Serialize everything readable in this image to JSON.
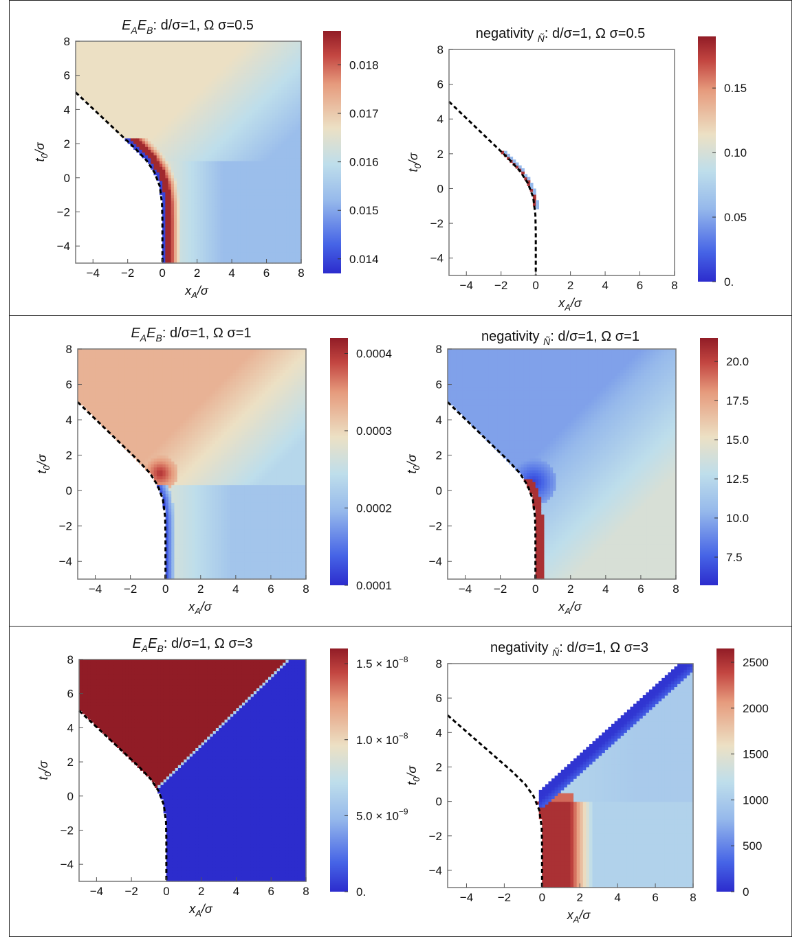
{
  "figure": {
    "panels": [
      {
        "title_parts": [
          "E",
          "A",
          "E",
          "B",
          ": d/σ=1, Ω σ=0.5"
        ],
        "xlabel_parts": [
          "x",
          "A",
          "/σ"
        ],
        "ylabel_parts": [
          "t",
          "0",
          "/σ"
        ],
        "xticks": [
          "−4",
          "−2",
          "0",
          "2",
          "4",
          "6",
          "8"
        ],
        "yticks": [
          "−4",
          "−2",
          "0",
          "2",
          "4",
          "6",
          "8"
        ],
        "colorbar_ticks": [
          "0.014",
          "0.015",
          "0.016",
          "0.017",
          "0.018"
        ]
      },
      {
        "title_parts": [
          "negativity ",
          "Ñ",
          "",
          "",
          ": d/σ=1, Ω σ=0.5"
        ],
        "xlabel_parts": [
          "x",
          "A",
          "/σ"
        ],
        "ylabel_parts": [
          "t",
          "0",
          "/σ"
        ],
        "xticks": [
          "−4",
          "−2",
          "0",
          "2",
          "4",
          "6",
          "8"
        ],
        "yticks": [
          "−4",
          "−2",
          "0",
          "2",
          "4",
          "6",
          "8"
        ],
        "colorbar_ticks": [
          "0.",
          "0.05",
          "0.10",
          "0.15"
        ]
      },
      {
        "title_parts": [
          "E",
          "A",
          "E",
          "B",
          ": d/σ=1, Ω σ=1"
        ],
        "xlabel_parts": [
          "x",
          "A",
          "/σ"
        ],
        "ylabel_parts": [
          "t",
          "0",
          "/σ"
        ],
        "xticks": [
          "−4",
          "−2",
          "0",
          "2",
          "4",
          "6",
          "8"
        ],
        "yticks": [
          "−4",
          "−2",
          "0",
          "2",
          "4",
          "6",
          "8"
        ],
        "colorbar_ticks": [
          "0.0001",
          "0.0002",
          "0.0003",
          "0.0004"
        ]
      },
      {
        "title_parts": [
          "negativity ",
          "Ñ",
          "",
          "",
          ": d/σ=1, Ω σ=1"
        ],
        "xlabel_parts": [
          "x",
          "A",
          "/σ"
        ],
        "ylabel_parts": [
          "t",
          "0",
          "/σ"
        ],
        "xticks": [
          "−4",
          "−2",
          "0",
          "2",
          "4",
          "6",
          "8"
        ],
        "yticks": [
          "−4",
          "−2",
          "0",
          "2",
          "4",
          "6",
          "8"
        ],
        "colorbar_ticks": [
          "7.5",
          "10.0",
          "12.5",
          "15.0",
          "17.5",
          "20.0"
        ]
      },
      {
        "title_parts": [
          "E",
          "A",
          "E",
          "B",
          ": d/σ=1, Ω σ=3"
        ],
        "xlabel_parts": [
          "x",
          "A",
          "/σ"
        ],
        "ylabel_parts": [
          "t",
          "0",
          "/σ"
        ],
        "xticks": [
          "−4",
          "−2",
          "0",
          "2",
          "4",
          "6",
          "8"
        ],
        "yticks": [
          "−4",
          "−2",
          "0",
          "2",
          "4",
          "6",
          "8"
        ],
        "colorbar_ticks": [
          "0.",
          "5.0 × 10^-9",
          "1.0 × 10^-8",
          "1.5 × 10^-8"
        ]
      },
      {
        "title_parts": [
          "negativity ",
          "Ñ",
          "",
          "",
          ": d/σ=1, Ω σ=3"
        ],
        "xlabel_parts": [
          "x",
          "A",
          "/σ"
        ],
        "ylabel_parts": [
          "t",
          "0",
          "/σ"
        ],
        "xticks": [
          "−4",
          "−2",
          "0",
          "2",
          "4",
          "6",
          "8"
        ],
        "yticks": [
          "−4",
          "−2",
          "0",
          "2",
          "4",
          "6",
          "8"
        ],
        "colorbar_ticks": [
          "0",
          "500",
          "1000",
          "1500",
          "2000",
          "2500"
        ]
      }
    ]
  },
  "chart_data": [
    {
      "type": "heatmap",
      "title": "E_A E_B: d/σ=1, Ω σ=0.5",
      "xlabel": "x_A/σ",
      "ylabel": "t_0/σ",
      "xlim": [
        -5,
        8
      ],
      "ylim": [
        -5,
        8
      ],
      "colorbar": {
        "min": 0.0137,
        "max": 0.0187,
        "ticks": [
          0.014,
          0.015,
          0.016,
          0.017,
          0.018
        ]
      },
      "description_values": {
        "upper_left_region": 0.0166,
        "right_region": 0.0155,
        "peak": 0.0187,
        "minimum_near_boundary": 0.0137
      },
      "boundary": "dashed"
    },
    {
      "type": "heatmap",
      "title": "negativity Ñ: d/σ=1, Ω σ=0.5",
      "xlabel": "x_A/σ",
      "ylabel": "t_0/σ",
      "xlim": [
        -5,
        8
      ],
      "ylim": [
        -5,
        8
      ],
      "colorbar": {
        "min": 0,
        "max": 0.19,
        "ticks": [
          0,
          0.05,
          0.1,
          0.15
        ]
      },
      "description_values": {
        "nonzero_region": "x_A/σ ≈ -2 to 0, t_0/σ ≈ -1 to 2",
        "peak": 0.19,
        "elsewhere": 0
      },
      "boundary": "dashed"
    },
    {
      "type": "heatmap",
      "title": "E_A E_B: d/σ=1, Ω σ=1",
      "xlabel": "x_A/σ",
      "ylabel": "t_0/σ",
      "xlim": [
        -5,
        8
      ],
      "ylim": [
        -5,
        8
      ],
      "colorbar": {
        "min": 0.0001,
        "max": 0.00042,
        "ticks": [
          0.0001,
          0.0002,
          0.0003,
          0.0004
        ]
      },
      "description_values": {
        "upper_left_region": 0.00033,
        "right_region": 0.00023,
        "peak": 0.00042,
        "minimum_near_boundary": 0.0001
      },
      "boundary": "dashed"
    },
    {
      "type": "heatmap",
      "title": "negativity Ñ: d/σ=1, Ω σ=1",
      "xlabel": "x_A/σ",
      "ylabel": "t_0/σ",
      "xlim": [
        -5,
        8
      ],
      "ylim": [
        -5,
        8
      ],
      "colorbar": {
        "min": 5.7,
        "max": 21.5,
        "ticks": [
          7.5,
          10,
          12.5,
          15,
          17.5,
          20
        ]
      },
      "description_values": {
        "upper_left_region": 9.5,
        "right_region": 14,
        "minimum": 5.7,
        "peak_near_boundary": 21.5
      },
      "boundary": "dashed"
    },
    {
      "type": "heatmap",
      "title": "E_A E_B: d/σ=1, Ω σ=3",
      "xlabel": "x_A/σ",
      "ylabel": "t_0/σ",
      "xlim": [
        -5,
        8
      ],
      "ylim": [
        -5,
        8
      ],
      "colorbar": {
        "min": 0,
        "max": 1.6e-08,
        "ticks": [
          0,
          5e-09,
          1e-08,
          1.5e-08
        ]
      },
      "description_values": {
        "above_diagonal": 1.6e-08,
        "below_diagonal": 0,
        "diagonal": "t_0 ≈ x_A + 1"
      },
      "boundary": "dashed"
    },
    {
      "type": "heatmap",
      "title": "negativity Ñ: d/σ=1, Ω σ=3",
      "xlabel": "x_A/σ",
      "ylabel": "t_0/σ",
      "xlim": [
        -5,
        8
      ],
      "ylim": [
        -5,
        8
      ],
      "colorbar": {
        "min": 0,
        "max": 2650,
        "ticks": [
          0,
          500,
          1000,
          1500,
          2000,
          2500
        ]
      },
      "description_values": {
        "peak_region": "x_A/σ ≈ 0 to 1.5, t_0/σ < 0",
        "right_region": 1100,
        "band_along_diagonal": 0
      },
      "boundary": "dashed"
    }
  ]
}
